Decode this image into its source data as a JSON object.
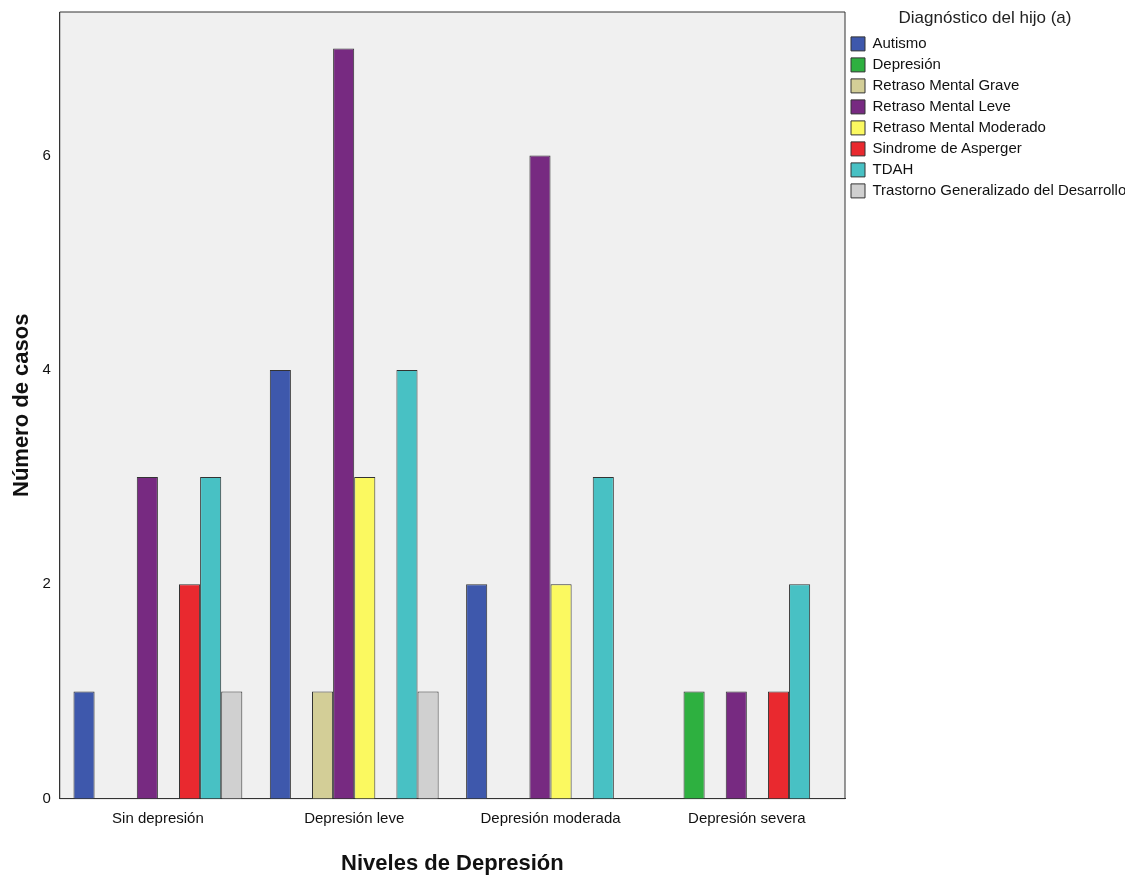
{
  "chart_data": {
    "type": "bar",
    "xlabel": "Niveles de Depresión",
    "ylabel": "Número de casos",
    "legend_title": "Diagnóstico del hijo (a)",
    "legend": "right",
    "categories": [
      "Sin depresión",
      "Depresión leve",
      "Depresión moderada",
      "Depresión severa"
    ],
    "ylim": [
      0,
      7.34
    ],
    "yticks": [
      0,
      2,
      4,
      6
    ],
    "series": [
      {
        "name": "Autismo",
        "color": "#3e58ac",
        "values": [
          1,
          4,
          2,
          null
        ]
      },
      {
        "name": "Depresión",
        "color": "#2eb040",
        "values": [
          null,
          null,
          null,
          1
        ]
      },
      {
        "name": "Retraso Mental Grave",
        "color": "#d3ce97",
        "values": [
          null,
          1,
          null,
          null
        ]
      },
      {
        "name": "Retraso Mental Leve",
        "color": "#772a81",
        "values": [
          3,
          7,
          6,
          1
        ]
      },
      {
        "name": "Retraso Mental Moderado",
        "color": "#fbf960",
        "values": [
          null,
          3,
          2,
          null
        ]
      },
      {
        "name": "Sindrome de Asperger",
        "color": "#e9292f",
        "values": [
          2,
          null,
          null,
          1
        ]
      },
      {
        "name": "TDAH",
        "color": "#48c1c4",
        "values": [
          3,
          4,
          3,
          2
        ]
      },
      {
        "name": "Trastorno Generalizado del Desarrollo",
        "color": "#d0d0d0",
        "values": [
          1,
          1,
          null,
          null
        ]
      }
    ]
  }
}
